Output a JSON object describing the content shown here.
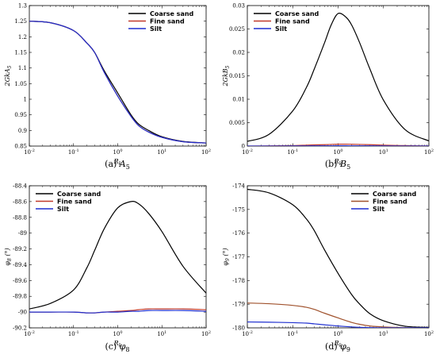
{
  "chart_data": [
    {
      "type": "line",
      "caption": "(a) A5",
      "caption_parts": [
        "(a) ",
        "A",
        "5"
      ],
      "ylabel": "2GkA5",
      "xlabel": "Rk",
      "xscale": "log",
      "xlim": [
        0.01,
        100
      ],
      "ylim": [
        0.85,
        1.3
      ],
      "xticks": [
        0.01,
        0.1,
        1,
        10,
        100
      ],
      "xtick_labels": [
        [
          "10",
          "-2"
        ],
        [
          "10",
          "-1"
        ],
        [
          "10",
          "0"
        ],
        [
          "10",
          "1"
        ],
        [
          "10",
          "2"
        ]
      ],
      "yticks": [
        0.85,
        0.9,
        0.95,
        1,
        1.05,
        1.1,
        1.15,
        1.2,
        1.25,
        1.3
      ],
      "ytick_labels": [
        "0.85",
        "0.9",
        "0.95",
        "1",
        "1.05",
        "1.1",
        "1.15",
        "1.2",
        "1.25",
        "1.3"
      ],
      "legend_position": "top-right",
      "x": [
        0.01,
        0.03,
        0.1,
        0.2,
        0.3,
        0.5,
        1,
        2,
        3,
        5,
        10,
        30,
        100
      ],
      "series": [
        {
          "name": "Coarse sand",
          "color": "#000000",
          "values": [
            1.25,
            1.245,
            1.22,
            1.18,
            1.15,
            1.09,
            1.02,
            0.95,
            0.92,
            0.9,
            0.88,
            0.865,
            0.86
          ]
        },
        {
          "name": "Fine sand",
          "color": "#c0392b",
          "values": [
            1.25,
            1.245,
            1.22,
            1.18,
            1.15,
            1.085,
            1.01,
            0.945,
            0.915,
            0.895,
            0.878,
            0.864,
            0.86
          ]
        },
        {
          "name": "Silt",
          "color": "#1f2fd0",
          "values": [
            1.25,
            1.245,
            1.22,
            1.18,
            1.15,
            1.085,
            1.01,
            0.945,
            0.915,
            0.895,
            0.878,
            0.864,
            0.86
          ]
        }
      ]
    },
    {
      "type": "line",
      "caption": "(b) B5",
      "caption_parts": [
        "(b) ",
        "B",
        "5"
      ],
      "ylabel": "2GkB5",
      "xlabel": "Rk",
      "xscale": "log",
      "xlim": [
        0.01,
        100
      ],
      "ylim": [
        0,
        0.03
      ],
      "xticks": [
        0.01,
        0.1,
        1,
        10,
        100
      ],
      "xtick_labels": [
        [
          "10",
          "-2"
        ],
        [
          "10",
          "-1"
        ],
        [
          "10",
          "0"
        ],
        [
          "10",
          "1"
        ],
        [
          "10",
          "2"
        ]
      ],
      "yticks": [
        0,
        0.005,
        0.01,
        0.015,
        0.02,
        0.025,
        0.03
      ],
      "ytick_labels": [
        "0",
        "0.005",
        "0.01",
        "0.015",
        "0.02",
        "0.025",
        "0.03"
      ],
      "legend_position": "top-left",
      "x": [
        0.01,
        0.03,
        0.1,
        0.2,
        0.3,
        0.5,
        0.7,
        1,
        1.5,
        2,
        3,
        5,
        10,
        30,
        100
      ],
      "series": [
        {
          "name": "Coarse sand",
          "color": "#000000",
          "values": [
            0.001,
            0.0025,
            0.0075,
            0.0125,
            0.0165,
            0.022,
            0.0258,
            0.0283,
            0.0275,
            0.0258,
            0.022,
            0.0165,
            0.0098,
            0.0035,
            0.0011
          ]
        },
        {
          "name": "Fine sand",
          "color": "#c0392b",
          "values": [
            0.0,
            5e-05,
            0.0001,
            0.0002,
            0.00025,
            0.0003,
            0.00035,
            0.0004,
            0.0004,
            0.00038,
            0.00035,
            0.0003,
            0.0002,
            0.0001,
            3e-05
          ]
        },
        {
          "name": "Silt",
          "color": "#1f2fd0",
          "values": [
            0.0,
            0.0,
            2e-05,
            3e-05,
            4e-05,
            5e-05,
            5e-05,
            6e-05,
            6e-05,
            5e-05,
            5e-05,
            4e-05,
            3e-05,
            1e-05,
            0.0
          ]
        }
      ]
    },
    {
      "type": "line",
      "caption": "(c) φ8",
      "caption_parts": [
        "(c) ",
        "φ",
        "8"
      ],
      "ylabel": "φ8 (°)",
      "xlabel": "Rk",
      "xscale": "log",
      "xlim": [
        0.01,
        100
      ],
      "ylim": [
        -90.2,
        -88.4
      ],
      "xticks": [
        0.01,
        0.1,
        1,
        10,
        100
      ],
      "xtick_labels": [
        [
          "10",
          "-2"
        ],
        [
          "10",
          "-1"
        ],
        [
          "10",
          "0"
        ],
        [
          "10",
          "1"
        ],
        [
          "10",
          "2"
        ]
      ],
      "yticks": [
        -90.2,
        -90,
        -89.8,
        -89.6,
        -89.4,
        -89.2,
        -89,
        -88.8,
        -88.6,
        -88.4
      ],
      "ytick_labels": [
        "-90.2",
        "-90",
        "-89.8",
        "-89.6",
        "-89.4",
        "-89.2",
        "-89",
        "-88.8",
        "-88.6",
        "-88.4"
      ],
      "legend_position": "top-left",
      "x": [
        0.01,
        0.03,
        0.1,
        0.2,
        0.3,
        0.5,
        1,
        2,
        3,
        5,
        10,
        30,
        100
      ],
      "series": [
        {
          "name": "Coarse sand",
          "color": "#000000",
          "values": [
            -89.96,
            -89.89,
            -89.72,
            -89.44,
            -89.22,
            -88.94,
            -88.68,
            -88.6,
            -88.63,
            -88.75,
            -88.98,
            -89.42,
            -89.76
          ]
        },
        {
          "name": "Fine sand",
          "color": "#c0392b",
          "values": [
            -90.0,
            -90.0,
            -90.0,
            -90.01,
            -90.01,
            -90.0,
            -89.99,
            -89.98,
            -89.97,
            -89.96,
            -89.96,
            -89.96,
            -89.97
          ]
        },
        {
          "name": "Silt",
          "color": "#1f2fd0",
          "values": [
            -90.0,
            -90.0,
            -90.0,
            -90.01,
            -90.01,
            -90.0,
            -90.0,
            -89.99,
            -89.99,
            -89.98,
            -89.98,
            -89.98,
            -89.99
          ]
        }
      ]
    },
    {
      "type": "line",
      "caption": "(d) φ9",
      "caption_parts": [
        "(d) ",
        "φ",
        "9"
      ],
      "ylabel": "φ9 (°)",
      "xlabel": "Rk",
      "xscale": "log",
      "xlim": [
        0.01,
        100
      ],
      "ylim": [
        -180,
        -174
      ],
      "xticks": [
        0.01,
        0.1,
        1,
        10,
        100
      ],
      "xtick_labels": [
        [
          "10",
          "-2"
        ],
        [
          "10",
          "-1"
        ],
        [
          "10",
          "0"
        ],
        [
          "10",
          "1"
        ],
        [
          "10",
          "2"
        ]
      ],
      "yticks": [
        -180,
        -179,
        -178,
        -177,
        -176,
        -175,
        -174
      ],
      "ytick_labels": [
        "-180",
        "-179",
        "-178",
        "-177",
        "-176",
        "-175",
        "-174"
      ],
      "legend_position": "top-right",
      "x": [
        0.01,
        0.03,
        0.1,
        0.2,
        0.3,
        0.5,
        1,
        2,
        3,
        5,
        10,
        30,
        100
      ],
      "series": [
        {
          "name": "Coarse sand",
          "color": "#000000",
          "values": [
            -174.15,
            -174.3,
            -174.8,
            -175.4,
            -175.9,
            -176.7,
            -177.7,
            -178.6,
            -179.0,
            -179.4,
            -179.7,
            -179.93,
            -179.98
          ]
        },
        {
          "name": "Fine sand",
          "color": "#a0522d",
          "values": [
            -178.95,
            -178.98,
            -179.05,
            -179.13,
            -179.22,
            -179.38,
            -179.58,
            -179.77,
            -179.85,
            -179.92,
            -179.96,
            -179.99,
            -180.0
          ]
        },
        {
          "name": "Silt",
          "color": "#1f2fd0",
          "values": [
            -179.75,
            -179.76,
            -179.78,
            -179.8,
            -179.83,
            -179.87,
            -179.92,
            -179.96,
            -179.98,
            -179.99,
            -180.0,
            -180.0,
            -180.0
          ]
        }
      ]
    }
  ]
}
